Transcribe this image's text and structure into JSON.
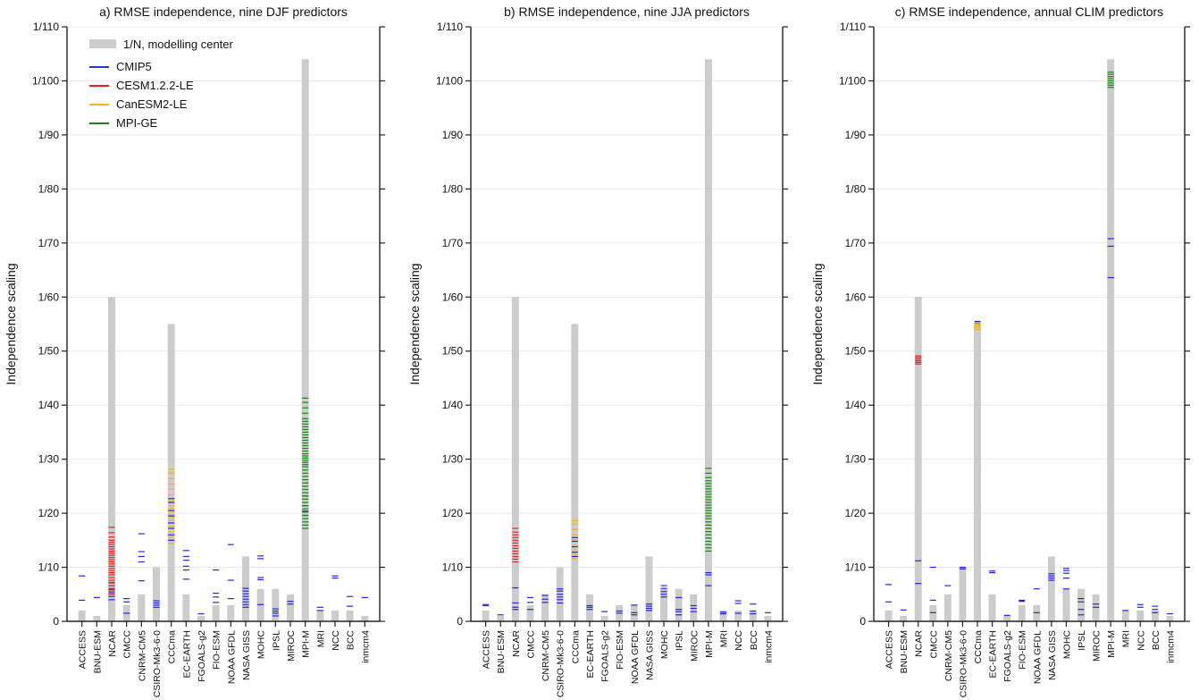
{
  "colors": {
    "bar": "#cccccc",
    "CMIP5": "#1f22ff",
    "CESM1.2.2-LE": "#ff1a1a",
    "CanESM2-LE": "#f5b21b",
    "MPI-GE": "#118811",
    "axis": "#222222"
  },
  "legend": {
    "bar_label": "1/N, modelling center",
    "entries": [
      {
        "label": "CMIP5",
        "color": "#1f3fbf"
      },
      {
        "label": "CESM1.2.2-LE",
        "color": "#ff1a1a"
      },
      {
        "label": "CanESM2-LE",
        "color": "#f5b21b"
      },
      {
        "label": "MPI-GE",
        "color": "#118811"
      }
    ]
  },
  "chart_data": [
    {
      "type": "bar",
      "title": "a) RMSE independence, nine DJF predictors",
      "ylabel": "Independence scaling",
      "ylim": [
        0,
        110
      ],
      "yticks": [
        0,
        10,
        20,
        30,
        40,
        50,
        60,
        70,
        80,
        90,
        100,
        110
      ],
      "yticklabels": [
        "0",
        "1/10",
        "1/20",
        "1/30",
        "1/40",
        "1/50",
        "1/60",
        "1/70",
        "1/80",
        "1/90",
        "1/100",
        "1/110"
      ],
      "categories": [
        "ACCESS",
        "BNU-ESM",
        "NCAR",
        "CMCC",
        "CNRM-CM5",
        "CSIRO-Mk3-6-0",
        "CCCma",
        "EC-EARTH",
        "FGOALS-g2",
        "FIO-ESM",
        "NOAA GFDL",
        "NASA GISS",
        "MOHC",
        "IPSL",
        "MIROC",
        "MPI-M",
        "MRI",
        "NCC",
        "BCC",
        "inmcm4"
      ],
      "values": [
        2,
        1,
        60,
        3,
        5,
        10,
        55,
        5,
        1,
        3,
        3,
        12,
        6,
        6,
        5,
        104,
        2,
        2,
        2,
        1
      ],
      "markers": [
        {
          "category": "ACCESS",
          "series": "CMIP5",
          "values": [
            8.4,
            3.9
          ]
        },
        {
          "category": "BNU-ESM",
          "series": "CMIP5",
          "values": [
            4.4
          ]
        },
        {
          "category": "NCAR",
          "series": "CMIP5",
          "values": [
            4.0,
            4.6,
            5.3,
            5.9,
            6.6,
            7.2
          ]
        },
        {
          "category": "NCAR",
          "series": "CESM1.2.2-LE",
          "values": [
            5.0,
            5.6,
            6.1,
            6.6,
            7.1,
            7.6,
            8.1,
            8.6,
            9.0,
            9.4,
            9.8,
            10.2,
            10.6,
            11.0,
            11.4,
            11.8,
            12.2,
            12.6,
            13.0,
            13.4,
            13.8,
            14.2,
            14.6,
            15.0,
            15.6,
            16.4,
            17.4
          ]
        },
        {
          "category": "CMCC",
          "series": "CMIP5",
          "values": [
            4.2,
            3.6,
            1.5
          ]
        },
        {
          "category": "CNRM-CM5",
          "series": "CMIP5",
          "values": [
            16.2,
            12.9,
            12.0,
            11.0,
            7.5
          ]
        },
        {
          "category": "CSIRO-Mk3-6-0",
          "series": "CMIP5",
          "values": [
            2.6,
            3.0,
            3.4,
            3.8
          ]
        },
        {
          "category": "CCCma",
          "series": "CMIP5",
          "values": [
            15.0,
            16.0,
            17.2,
            18.2,
            19.5,
            20.5,
            22.0,
            22.7
          ]
        },
        {
          "category": "CCCma",
          "series": "CanESM2-LE",
          "values": [
            14.4,
            15.6,
            16.6,
            17.6,
            18.7,
            19.2,
            19.8,
            20.3,
            20.9,
            21.4,
            22.3,
            23.4,
            24.4,
            25.4,
            26.4,
            27.4,
            28.2
          ]
        },
        {
          "category": "EC-EARTH",
          "series": "CMIP5",
          "values": [
            13.1,
            12.0,
            11.3,
            10.2,
            9.5,
            7.8
          ]
        },
        {
          "category": "FGOALS-g2",
          "series": "CMIP5",
          "values": [
            1.4
          ]
        },
        {
          "category": "FIO-ESM",
          "series": "CMIP5",
          "values": [
            9.5,
            5.2,
            4.5,
            3.5
          ]
        },
        {
          "category": "NOAA GFDL",
          "series": "CMIP5",
          "values": [
            14.2,
            7.6,
            4.2
          ]
        },
        {
          "category": "NASA GISS",
          "series": "CMIP5",
          "values": [
            2.6,
            3.1,
            3.6,
            4.1,
            4.6,
            5.1,
            5.6,
            6.1
          ]
        },
        {
          "category": "MOHC",
          "series": "CMIP5",
          "values": [
            12.1,
            11.6,
            8.1,
            7.7,
            3.1
          ]
        },
        {
          "category": "IPSL",
          "series": "CMIP5",
          "values": [
            1.0,
            1.5,
            1.9,
            2.3
          ]
        },
        {
          "category": "MIROC",
          "series": "CMIP5",
          "values": [
            3.2,
            3.7
          ]
        },
        {
          "category": "MPI-M",
          "series": "CMIP5",
          "values": [
            19.6,
            20.4,
            21.4,
            23.2
          ]
        },
        {
          "category": "MPI-M",
          "series": "MPI-GE",
          "values": [
            17.2,
            17.8,
            18.4,
            19.0,
            19.6,
            20.2,
            20.8,
            21.4,
            22.0,
            22.6,
            23.2,
            23.8,
            24.4,
            25.0,
            25.6,
            26.2,
            26.8,
            27.4,
            28.0,
            28.6,
            29.0,
            29.4,
            29.8,
            30.2,
            30.6,
            31.0,
            31.5,
            32.0,
            32.5,
            33.0,
            33.5,
            34.0,
            34.5,
            35.0,
            35.5,
            36.0,
            36.5,
            37.0,
            37.5,
            38.5,
            39.5,
            40.5,
            41.3
          ]
        },
        {
          "category": "MRI",
          "series": "CMIP5",
          "values": [
            2.6,
            2.0
          ]
        },
        {
          "category": "NCC",
          "series": "CMIP5",
          "values": [
            8.4,
            8.0
          ]
        },
        {
          "category": "BCC",
          "series": "CMIP5",
          "values": [
            4.6,
            2.8
          ]
        },
        {
          "category": "inmcm4",
          "series": "CMIP5",
          "values": [
            4.4
          ]
        }
      ]
    },
    {
      "type": "bar",
      "title": "b) RMSE independence, nine JJA predictors",
      "ylabel": "Independence scaling",
      "ylim": [
        0,
        110
      ],
      "yticks": [
        0,
        10,
        20,
        30,
        40,
        50,
        60,
        70,
        80,
        90,
        100,
        110
      ],
      "yticklabels": [
        "0",
        "1/10",
        "1/20",
        "1/30",
        "1/40",
        "1/50",
        "1/60",
        "1/70",
        "1/80",
        "1/90",
        "1/100",
        "1/110"
      ],
      "categories": [
        "ACCESS",
        "BNU-ESM",
        "NCAR",
        "CMCC",
        "CNRM-CM5",
        "CSIRO-Mk3-6-0",
        "CCCma",
        "EC-EARTH",
        "FGOALS-g2",
        "FIO-ESM",
        "NOAA GFDL",
        "NASA GISS",
        "MOHC",
        "IPSL",
        "MIROC",
        "MPI-M",
        "MRI",
        "NCC",
        "BCC",
        "inmcm4"
      ],
      "values": [
        2,
        1,
        60,
        3,
        5,
        10,
        55,
        5,
        1,
        3,
        3,
        12,
        6,
        6,
        5,
        104,
        2,
        2,
        2,
        1
      ],
      "markers": [
        {
          "category": "ACCESS",
          "series": "CMIP5",
          "values": [
            2.9,
            3.1
          ]
        },
        {
          "category": "BNU-ESM",
          "series": "CMIP5",
          "values": [
            1.2
          ]
        },
        {
          "category": "NCAR",
          "series": "CMIP5",
          "values": [
            2.2,
            2.6,
            3.4,
            6.2
          ]
        },
        {
          "category": "NCAR",
          "series": "CESM1.2.2-LE",
          "values": [
            11.0,
            11.5,
            12.0,
            12.5,
            13.0,
            13.5,
            14.0,
            14.5,
            15.0,
            15.5,
            16.0,
            16.5,
            17.2
          ]
        },
        {
          "category": "CMCC",
          "series": "CMIP5",
          "values": [
            4.4,
            3.5,
            2.2
          ]
        },
        {
          "category": "CNRM-CM5",
          "series": "CMIP5",
          "values": [
            4.8,
            4.1,
            3.5
          ]
        },
        {
          "category": "CSIRO-Mk3-6-0",
          "series": "CMIP5",
          "values": [
            3.4,
            4.0,
            4.5,
            5.0,
            5.6,
            6.0
          ]
        },
        {
          "category": "CCCma",
          "series": "CMIP5",
          "values": [
            12.0,
            12.8,
            13.8,
            14.8,
            15.5
          ]
        },
        {
          "category": "CCCma",
          "series": "CanESM2-LE",
          "values": [
            11.6,
            12.4,
            13.2,
            14.1,
            15.1,
            16.0,
            17.0,
            18.0,
            18.6
          ]
        },
        {
          "category": "EC-EARTH",
          "series": "CMIP5",
          "values": [
            2.2,
            2.6,
            2.9
          ]
        },
        {
          "category": "FGOALS-g2",
          "series": "CMIP5",
          "values": [
            1.8
          ]
        },
        {
          "category": "FIO-ESM",
          "series": "CMIP5",
          "values": [
            1.5,
            1.9
          ]
        },
        {
          "category": "NOAA GFDL",
          "series": "CMIP5",
          "values": [
            3.0,
            1.6,
            1.2
          ]
        },
        {
          "category": "NASA GISS",
          "series": "CMIP5",
          "values": [
            2.0,
            2.4,
            2.8,
            3.2
          ]
        },
        {
          "category": "MOHC",
          "series": "CMIP5",
          "values": [
            6.6,
            6.1,
            5.5,
            5.0,
            4.5
          ]
        },
        {
          "category": "IPSL",
          "series": "CMIP5",
          "values": [
            1.2,
            1.8,
            2.2,
            4.4
          ]
        },
        {
          "category": "MIROC",
          "series": "CMIP5",
          "values": [
            1.8,
            2.4,
            2.9
          ]
        },
        {
          "category": "MPI-M",
          "series": "CMIP5",
          "values": [
            6.6,
            8.6,
            9.0
          ]
        },
        {
          "category": "MPI-M",
          "series": "MPI-GE",
          "values": [
            13.0,
            13.6,
            14.2,
            14.8,
            15.4,
            16.0,
            16.6,
            17.2,
            17.8,
            18.4,
            19.0,
            19.5,
            20.0,
            20.5,
            21.0,
            21.5,
            22.0,
            22.5,
            23.0,
            23.5,
            24.0,
            24.5,
            25.0,
            25.5,
            26.0,
            26.6,
            27.4,
            28.3
          ]
        },
        {
          "category": "MRI",
          "series": "CMIP5",
          "values": [
            1.4,
            1.7
          ]
        },
        {
          "category": "NCC",
          "series": "CMIP5",
          "values": [
            3.8,
            3.3,
            1.5
          ]
        },
        {
          "category": "BCC",
          "series": "CMIP5",
          "values": [
            3.2,
            1.9,
            1.4
          ]
        },
        {
          "category": "inmcm4",
          "series": "CMIP5",
          "values": [
            1.6
          ]
        }
      ]
    },
    {
      "type": "bar",
      "title": "c) RMSE independence, annual CLIM predictors",
      "ylabel": "Independence scaling",
      "ylim": [
        0,
        110
      ],
      "yticks": [
        0,
        10,
        20,
        30,
        40,
        50,
        60,
        70,
        80,
        90,
        100,
        110
      ],
      "yticklabels": [
        "0",
        "1/10",
        "1/20",
        "1/30",
        "1/40",
        "1/50",
        "1/60",
        "1/70",
        "1/80",
        "1/90",
        "1/100",
        "1/110"
      ],
      "categories": [
        "ACCESS",
        "BNU-ESM",
        "NCAR",
        "CMCC",
        "CNRM-CM5",
        "CSIRO-Mk3-6-0",
        "CCCma",
        "EC-EARTH",
        "FGOALS-g2",
        "FIO-ESM",
        "NOAA GFDL",
        "NASA GISS",
        "MOHC",
        "IPSL",
        "MIROC",
        "MPI-M",
        "MRI",
        "NCC",
        "BCC",
        "inmcm4"
      ],
      "values": [
        2,
        1,
        60,
        3,
        5,
        10,
        55,
        5,
        1,
        3,
        3,
        12,
        6,
        6,
        5,
        104,
        2,
        2,
        2,
        1
      ],
      "markers": [
        {
          "category": "ACCESS",
          "series": "CMIP5",
          "values": [
            6.8,
            3.6
          ]
        },
        {
          "category": "BNU-ESM",
          "series": "CMIP5",
          "values": [
            2.1
          ]
        },
        {
          "category": "NCAR",
          "series": "CMIP5",
          "values": [
            11.2,
            7.0
          ]
        },
        {
          "category": "NCAR",
          "series": "CESM1.2.2-LE",
          "values": [
            47.6,
            47.9,
            48.2,
            48.5,
            48.8,
            49.1
          ]
        },
        {
          "category": "CMCC",
          "series": "CMIP5",
          "values": [
            10.0,
            3.9,
            1.6
          ]
        },
        {
          "category": "CNRM-CM5",
          "series": "CMIP5",
          "values": [
            6.6
          ]
        },
        {
          "category": "CSIRO-Mk3-6-0",
          "series": "CMIP5",
          "values": [
            9.7,
            10.0
          ]
        },
        {
          "category": "CCCma",
          "series": "CMIP5",
          "values": [
            55.2,
            55.5
          ]
        },
        {
          "category": "CCCma",
          "series": "CanESM2-LE",
          "values": [
            54.0,
            54.3,
            54.6,
            54.9,
            55.1
          ]
        },
        {
          "category": "EC-EARTH",
          "series": "CMIP5",
          "values": [
            9.0,
            9.3
          ]
        },
        {
          "category": "FGOALS-g2",
          "series": "CMIP5",
          "values": [
            1.1
          ]
        },
        {
          "category": "FIO-ESM",
          "series": "CMIP5",
          "values": [
            3.7,
            3.9
          ]
        },
        {
          "category": "NOAA GFDL",
          "series": "CMIP5",
          "values": [
            6.0,
            1.6
          ]
        },
        {
          "category": "NASA GISS",
          "series": "CMIP5",
          "values": [
            7.6,
            8.0,
            8.4,
            8.8
          ]
        },
        {
          "category": "MOHC",
          "series": "CMIP5",
          "values": [
            9.8,
            9.4,
            8.9,
            8.0,
            6.0
          ]
        },
        {
          "category": "IPSL",
          "series": "CMIP5",
          "values": [
            4.2,
            3.6,
            2.2,
            1.2
          ]
        },
        {
          "category": "MIROC",
          "series": "CMIP5",
          "values": [
            3.2,
            2.6
          ]
        },
        {
          "category": "MPI-M",
          "series": "CMIP5",
          "values": [
            70.8,
            69.4,
            63.6
          ]
        },
        {
          "category": "MPI-M",
          "series": "MPI-GE",
          "values": [
            98.8,
            99.2,
            99.6,
            100.0,
            100.4,
            100.8,
            101.2,
            101.6
          ]
        },
        {
          "category": "MRI",
          "series": "CMIP5",
          "values": [
            2.0
          ]
        },
        {
          "category": "NCC",
          "series": "CMIP5",
          "values": [
            3.1,
            2.6
          ]
        },
        {
          "category": "BCC",
          "series": "CMIP5",
          "values": [
            2.8,
            2.2,
            1.6
          ]
        },
        {
          "category": "inmcm4",
          "series": "CMIP5",
          "values": [
            1.4
          ]
        }
      ]
    }
  ]
}
